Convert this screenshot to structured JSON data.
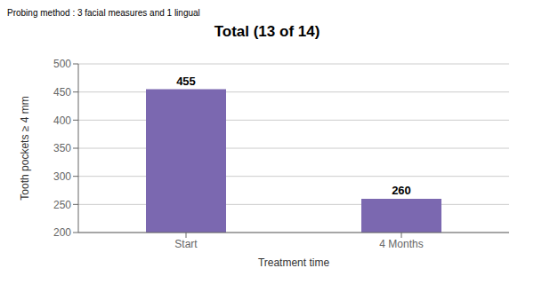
{
  "chart_data": {
    "type": "bar",
    "title": "Total (13 of 14)",
    "subtitle": "Probing method : 3 facial measures and 1 lingual",
    "categories": [
      "Start",
      "4 Months"
    ],
    "values": [
      455,
      260
    ],
    "color": "#7B68B0",
    "ylim": [
      200,
      500
    ],
    "yticks": [
      200,
      250,
      300,
      350,
      400,
      450,
      500
    ],
    "ylabel": "Tooth pockets ≥ 4 mm",
    "xlabel": "Treatment time",
    "grid": true,
    "data_labels": true
  }
}
